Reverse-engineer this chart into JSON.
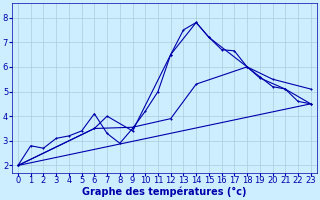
{
  "background_color": "#cceeff",
  "grid_color": "#aaccdd",
  "line_color": "#0000aa",
  "xlabel": "Graphe des températures (°c)",
  "xlabel_fontsize": 7,
  "tick_fontsize": 6,
  "xlim": [
    -0.5,
    23.5
  ],
  "ylim": [
    1.7,
    8.6
  ],
  "yticks": [
    2,
    3,
    4,
    5,
    6,
    7,
    8
  ],
  "xticks": [
    0,
    1,
    2,
    3,
    4,
    5,
    6,
    7,
    8,
    9,
    10,
    11,
    12,
    13,
    14,
    15,
    16,
    17,
    18,
    19,
    20,
    21,
    22,
    23
  ],
  "line1_x": [
    0,
    1,
    2,
    3,
    4,
    5,
    6,
    7,
    8,
    9,
    10,
    11,
    12,
    13,
    14,
    15,
    16,
    17,
    18,
    19,
    20,
    21,
    22,
    23
  ],
  "line1_y": [
    2.0,
    2.8,
    2.7,
    3.1,
    3.2,
    3.4,
    4.1,
    3.3,
    2.9,
    3.5,
    4.2,
    5.0,
    6.5,
    7.5,
    7.8,
    7.2,
    6.7,
    6.65,
    6.0,
    5.6,
    5.2,
    5.1,
    4.6,
    4.5
  ],
  "line2_x": [
    0,
    6,
    7,
    9,
    12,
    14,
    15,
    18,
    20,
    23
  ],
  "line2_y": [
    2.0,
    3.5,
    4.0,
    3.4,
    6.5,
    7.8,
    7.2,
    6.0,
    5.5,
    5.1
  ],
  "line3_x": [
    0,
    6,
    9,
    12,
    14,
    18,
    19,
    21,
    23
  ],
  "line3_y": [
    2.0,
    3.5,
    3.55,
    3.9,
    5.3,
    6.0,
    5.55,
    5.1,
    4.5
  ],
  "line4_x": [
    0,
    23
  ],
  "line4_y": [
    2.0,
    4.5
  ]
}
